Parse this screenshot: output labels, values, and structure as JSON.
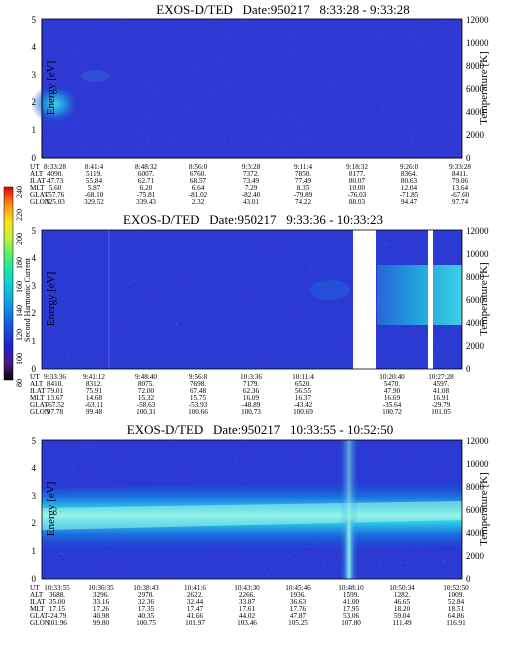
{
  "page_title": "EXOS-D/TED",
  "colorbar": {
    "label": "Second Harmonic Current",
    "ticks": [
      "80",
      "100",
      "120",
      "140",
      "160",
      "180",
      "200",
      "220",
      "240"
    ],
    "colors": [
      "#000000",
      "#4a1a78",
      "#2020c8",
      "#1560e0",
      "#10a0e8",
      "#10d0d0",
      "#20e8a0",
      "#60f060",
      "#c8f040",
      "#f8e020",
      "#f89818",
      "#f04010",
      "#e00000"
    ]
  },
  "panels": [
    {
      "title": "EXOS-D/TED   Date:950217   8:33:28 - 9:33:28",
      "ylabel": "Energy [eV]",
      "y2label": "Temperature [K]",
      "yticks": [
        "0",
        "1",
        "2",
        "3",
        "4",
        "5"
      ],
      "y2ticks": [
        "0",
        "2000",
        "4000",
        "6000",
        "8000",
        "10000",
        "12000"
      ],
      "row_labels": [
        "UT",
        "ALT",
        "ILAT",
        "MLT",
        "GLAT",
        "GLON"
      ],
      "columns": [
        [
          "8:33:28",
          "4090.",
          "47.73",
          "5.60",
          "-57.76",
          "325.03"
        ],
        [
          "8:41:4",
          "5119.",
          "55.84",
          "5.87",
          "-68.10",
          "329.52"
        ],
        [
          "8:48:32",
          "6007.",
          "62.71",
          "6.20",
          "-75.81",
          "339.43"
        ],
        [
          "8:56:0",
          "6760.",
          "68.57",
          "6.64",
          "-81.02",
          "2.32"
        ],
        [
          "9:3:28",
          "7372.",
          "73.49",
          "7.29",
          "-82.40",
          "43.01"
        ],
        [
          "9:11:4",
          "7850.",
          "77.49",
          "8.35",
          "-79.89",
          "74.22"
        ],
        [
          "9:18:32",
          "8177.",
          "80.07",
          "10.00",
          "-76.03",
          "88.03"
        ],
        [
          "9:26:0",
          "8364.",
          "80.63",
          "12.04",
          "-71.85",
          "94.47"
        ],
        [
          "9:33:28",
          "8411.",
          "79.06",
          "13.64",
          "-67.60",
          "97.74"
        ]
      ]
    },
    {
      "title": "EXOS-D/TED   Date:950217   9:33:36 - 10:33:23",
      "ylabel": "Energy [eV]",
      "y2label": "Temperature [K]",
      "yticks": [
        "0",
        "1",
        "2",
        "3",
        "4",
        "5"
      ],
      "y2ticks": [
        "0",
        "2000",
        "4000",
        "6000",
        "8000",
        "10000",
        "12000"
      ],
      "row_labels": [
        "UT",
        "ALT",
        "ILAT",
        "MLT",
        "GLAT",
        "GLON"
      ],
      "columns": [
        [
          "9:33:36",
          "8410.",
          "79.01",
          "13.67",
          "-67.52",
          "97.78"
        ],
        [
          "9:41:12",
          "8312.",
          "75.91",
          "14.68",
          "-63.11",
          "99.48"
        ],
        [
          "9:48:40",
          "8075.",
          "72.00",
          "15.32",
          "-58.63",
          "100.31"
        ],
        [
          "9:56:8",
          "7698.",
          "67.48",
          "15.75",
          "-53.93",
          "100.66"
        ],
        [
          "10:3:36",
          "7179.",
          "62.36",
          "16.09",
          "-48.89",
          "100.73"
        ],
        [
          "10:11:4",
          "6520.",
          "56.55",
          "16.37",
          "-43.42",
          "100.69"
        ],
        [
          "10:20:40",
          "5470.",
          "47.90",
          "16.69",
          "-35.64",
          "100.72"
        ],
        [
          "10:27:28",
          "4597.",
          "41.08",
          "16.91",
          "-29.79",
          "101.05"
        ]
      ]
    },
    {
      "title": "EXOS-D/TED   Date:950217   10:33:55 - 10:52:50",
      "ylabel": "Energy [eV]",
      "y2label": "Temperature [K]",
      "yticks": [
        "0",
        "1",
        "2",
        "3",
        "4",
        "5"
      ],
      "y2ticks": [
        "0",
        "2000",
        "4000",
        "6000",
        "8000",
        "10000",
        "12000"
      ],
      "row_labels": [
        "UT",
        "ALT",
        "ILAT",
        "MLT",
        "GLAT",
        "GLON"
      ],
      "columns": [
        [
          "10:33:55",
          "3688.",
          "35.00",
          "17.15",
          "-24.79",
          "101.96"
        ],
        [
          "10:36:35",
          "3296.",
          "33.16",
          "17.26",
          "40.98",
          "99.80"
        ],
        [
          "10:38:43",
          "2978.",
          "32.36",
          "17.35",
          "40.35",
          "100.75"
        ],
        [
          "10:41:6",
          "2622.",
          "32.44",
          "17.47",
          "41.66",
          "101.97"
        ],
        [
          "10:43:30",
          "2266.",
          "33.87",
          "17.61",
          "44.02",
          "103.46"
        ],
        [
          "10:45:46",
          "1936.",
          "36.63",
          "17.76",
          "47.87",
          "105.25"
        ],
        [
          "10:48:10",
          "1599.",
          "41.00",
          "17.95",
          "53.06",
          "107.80"
        ],
        [
          "10:50:34",
          "1282.",
          "46.65",
          "18.20",
          "59.04",
          "111.49"
        ],
        [
          "10:52:50",
          "1009.",
          "52.84",
          "18.51",
          "64.86",
          "116.91"
        ]
      ]
    }
  ],
  "chart_data": [
    {
      "type": "heatmap",
      "title": "EXOS-D/TED   Date:950217   8:33:28 - 9:33:28",
      "xlabel": "UT",
      "ylabel": "Energy [eV]",
      "y2label": "Temperature [K]",
      "ylim": [
        0,
        5
      ],
      "y2lim": [
        0,
        12000
      ],
      "x": [
        "8:33:28",
        "8:41:4",
        "8:48:32",
        "8:56:0",
        "9:3:28",
        "9:11:4",
        "9:18:32",
        "9:26:0",
        "9:33:28"
      ],
      "color_scale": [
        80,
        240
      ],
      "background_level": 130,
      "features": [
        {
          "x_range": [
            "8:33:28",
            "8:41:4"
          ],
          "energy_center": 2.0,
          "energy_halfwidth": 0.5,
          "peak_level": 175
        },
        {
          "x_range": [
            "8:33:28",
            "8:38:0"
          ],
          "energy_center": 2.9,
          "energy_halfwidth": 0.3,
          "peak_level": 150
        }
      ]
    },
    {
      "type": "heatmap",
      "title": "EXOS-D/TED   Date:950217   9:33:36 - 10:33:23",
      "xlabel": "UT",
      "ylabel": "Energy [eV]",
      "y2label": "Temperature [K]",
      "ylim": [
        0,
        5
      ],
      "y2lim": [
        0,
        12000
      ],
      "x": [
        "9:33:36",
        "9:41:12",
        "9:48:40",
        "9:56:8",
        "10:3:36",
        "10:11:4",
        "10:20:40",
        "10:27:28"
      ],
      "color_scale": [
        80,
        240
      ],
      "background_level": 125,
      "data_gaps": [
        [
          "10:14:30",
          "10:18:40"
        ],
        [
          "10:29:30",
          "10:30:30"
        ]
      ],
      "features": [
        {
          "x_range": [
            "10:5:0",
            "10:33:23"
          ],
          "energy_center": 2.6,
          "energy_halfwidth": 0.5,
          "peak_level": 175
        },
        {
          "x_range": [
            "9:33:36",
            "10:5:0"
          ],
          "energy_center": 2.9,
          "energy_halfwidth": 0.3,
          "peak_level": 140
        }
      ]
    },
    {
      "type": "heatmap",
      "title": "EXOS-D/TED   Date:950217   10:33:55 - 10:52:50",
      "xlabel": "UT",
      "ylabel": "Energy [eV]",
      "y2label": "Temperature [K]",
      "ylim": [
        0,
        5
      ],
      "y2lim": [
        0,
        12000
      ],
      "x": [
        "10:33:55",
        "10:36:35",
        "10:38:43",
        "10:41:6",
        "10:43:30",
        "10:45:46",
        "10:48:10",
        "10:50:34",
        "10:52:50"
      ],
      "color_scale": [
        80,
        240
      ],
      "background_level": 125,
      "features": [
        {
          "x_range": [
            "10:33:55",
            "10:52:50"
          ],
          "energy_center": 2.2,
          "energy_center_end": 2.6,
          "energy_halfwidth": 0.65,
          "peak_level": 185
        },
        {
          "x_range": [
            "10:46:40",
            "10:47:40"
          ],
          "energy_center": 1.0,
          "energy_halfwidth": 1.0,
          "peak_level": 175
        }
      ]
    }
  ]
}
